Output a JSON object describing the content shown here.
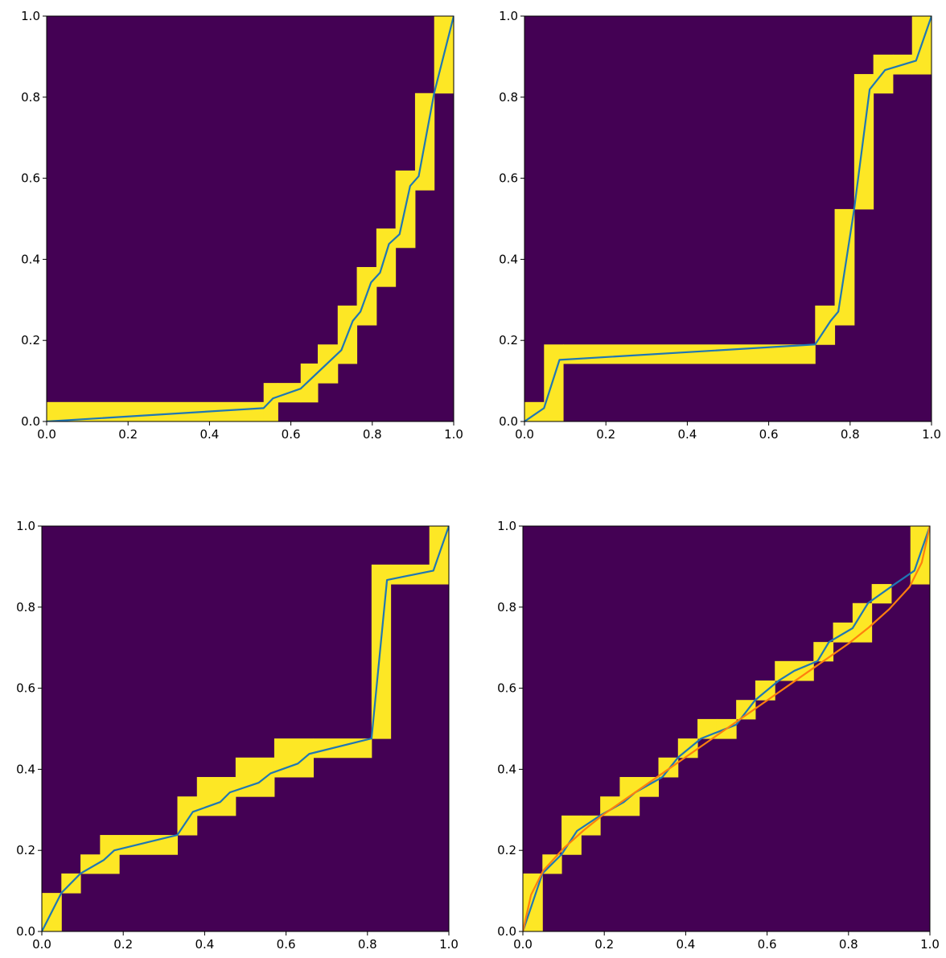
{
  "chart_data": [
    {
      "type": "line",
      "xlim": [
        0,
        1
      ],
      "ylim": [
        0,
        1
      ],
      "xticks": [
        "0.0",
        "0.2",
        "0.4",
        "0.6",
        "0.8",
        "1.0"
      ],
      "yticks": [
        "0.0",
        "0.2",
        "0.4",
        "0.6",
        "0.8",
        "1.0"
      ],
      "grid": false,
      "band_rects": [
        [
          0.0,
          0.0,
          0.533,
          0.048
        ],
        [
          0.0,
          0.0,
          0.568,
          0.0
        ],
        [
          0.533,
          0.0,
          0.568,
          0.095
        ],
        [
          0.568,
          0.048,
          0.624,
          0.095
        ],
        [
          0.624,
          0.048,
          0.666,
          0.143
        ],
        [
          0.666,
          0.095,
          0.715,
          0.19
        ],
        [
          0.715,
          0.143,
          0.762,
          0.286
        ],
        [
          0.762,
          0.238,
          0.81,
          0.381
        ],
        [
          0.81,
          0.333,
          0.857,
          0.476
        ],
        [
          0.857,
          0.429,
          0.905,
          0.619
        ],
        [
          0.905,
          0.571,
          0.952,
          0.81
        ],
        [
          0.952,
          0.81,
          1.0,
          1.0
        ]
      ],
      "series": [
        {
          "x": [
            0.0,
            0.533,
            0.556,
            0.624,
            0.724,
            0.752,
            0.771,
            0.797,
            0.819,
            0.841,
            0.867,
            0.893,
            0.914,
            0.952,
            1.0
          ],
          "y": [
            0.0,
            0.033,
            0.057,
            0.081,
            0.176,
            0.248,
            0.271,
            0.343,
            0.367,
            0.438,
            0.462,
            0.581,
            0.605,
            0.81,
            1.0
          ]
        }
      ]
    },
    {
      "type": "line",
      "xlim": [
        0,
        1
      ],
      "ylim": [
        0,
        1
      ],
      "xticks": [
        "0.0",
        "0.2",
        "0.4",
        "0.6",
        "0.8",
        "1.0"
      ],
      "yticks": [
        "0.0",
        "0.2",
        "0.4",
        "0.6",
        "0.8",
        "1.0"
      ],
      "grid": false,
      "band_rects": [
        [
          0.0,
          0.0,
          0.048,
          0.048
        ],
        [
          0.048,
          0.0,
          0.095,
          0.19
        ],
        [
          0.095,
          0.143,
          0.714,
          0.19
        ],
        [
          0.714,
          0.19,
          0.762,
          0.286
        ],
        [
          0.762,
          0.238,
          0.81,
          0.524
        ],
        [
          0.81,
          0.524,
          0.857,
          0.857
        ],
        [
          0.857,
          0.81,
          0.905,
          0.905
        ],
        [
          0.905,
          0.857,
          0.952,
          0.905
        ],
        [
          0.952,
          0.857,
          1.0,
          1.0
        ]
      ],
      "series": [
        {
          "x": [
            0.0,
            0.048,
            0.086,
            0.714,
            0.752,
            0.771,
            0.81,
            0.848,
            0.886,
            0.962,
            1.0
          ],
          "y": [
            0.0,
            0.033,
            0.152,
            0.19,
            0.248,
            0.271,
            0.524,
            0.819,
            0.867,
            0.89,
            1.0
          ]
        }
      ]
    },
    {
      "type": "line",
      "xlim": [
        0,
        1
      ],
      "ylim": [
        0,
        1
      ],
      "xticks": [
        "0.0",
        "0.2",
        "0.4",
        "0.6",
        "0.8",
        "1.0"
      ],
      "yticks": [
        "0.0",
        "0.2",
        "0.4",
        "0.6",
        "0.8",
        "1.0"
      ],
      "grid": false,
      "band_rects": [
        [
          0.0,
          0.0,
          0.048,
          0.095
        ],
        [
          0.048,
          0.095,
          0.095,
          0.143
        ],
        [
          0.095,
          0.143,
          0.143,
          0.19
        ],
        [
          0.143,
          0.143,
          0.19,
          0.238
        ],
        [
          0.19,
          0.19,
          0.333,
          0.238
        ],
        [
          0.333,
          0.238,
          0.381,
          0.333
        ],
        [
          0.381,
          0.286,
          0.476,
          0.381
        ],
        [
          0.476,
          0.333,
          0.571,
          0.429
        ],
        [
          0.571,
          0.381,
          0.667,
          0.476
        ],
        [
          0.667,
          0.429,
          0.81,
          0.476
        ],
        [
          0.81,
          0.476,
          0.857,
          0.905
        ],
        [
          0.857,
          0.857,
          0.952,
          0.905
        ],
        [
          0.952,
          0.857,
          1.0,
          1.0
        ]
      ],
      "series": [
        {
          "x": [
            0.0,
            0.048,
            0.095,
            0.152,
            0.178,
            0.333,
            0.371,
            0.438,
            0.462,
            0.533,
            0.562,
            0.629,
            0.657,
            0.81,
            0.848,
            0.962,
            1.0
          ],
          "y": [
            0.0,
            0.095,
            0.143,
            0.176,
            0.2,
            0.238,
            0.295,
            0.319,
            0.343,
            0.367,
            0.39,
            0.414,
            0.438,
            0.476,
            0.867,
            0.89,
            1.0
          ]
        }
      ]
    },
    {
      "type": "line",
      "xlim": [
        0,
        1
      ],
      "ylim": [
        0,
        1
      ],
      "xticks": [
        "0.0",
        "0.2",
        "0.4",
        "0.6",
        "0.8",
        "1.0"
      ],
      "yticks": [
        "0.0",
        "0.2",
        "0.4",
        "0.6",
        "0.8",
        "1.0"
      ],
      "grid": false,
      "band_rects": [
        [
          0.0,
          0.0,
          0.048,
          0.143
        ],
        [
          0.048,
          0.143,
          0.095,
          0.19
        ],
        [
          0.095,
          0.19,
          0.143,
          0.286
        ],
        [
          0.143,
          0.238,
          0.19,
          0.286
        ],
        [
          0.19,
          0.286,
          0.238,
          0.333
        ],
        [
          0.238,
          0.286,
          0.286,
          0.381
        ],
        [
          0.286,
          0.333,
          0.333,
          0.381
        ],
        [
          0.333,
          0.381,
          0.381,
          0.429
        ],
        [
          0.381,
          0.429,
          0.429,
          0.476
        ],
        [
          0.429,
          0.476,
          0.476,
          0.524
        ],
        [
          0.476,
          0.476,
          0.524,
          0.524
        ],
        [
          0.524,
          0.524,
          0.571,
          0.571
        ],
        [
          0.571,
          0.571,
          0.619,
          0.619
        ],
        [
          0.619,
          0.619,
          0.714,
          0.667
        ],
        [
          0.714,
          0.667,
          0.762,
          0.714
        ],
        [
          0.762,
          0.714,
          0.81,
          0.762
        ],
        [
          0.81,
          0.714,
          0.857,
          0.81
        ],
        [
          0.857,
          0.81,
          0.905,
          0.857
        ],
        [
          0.905,
          0.857,
          0.952,
          0.857
        ],
        [
          0.952,
          0.857,
          1.0,
          1.0
        ]
      ],
      "series": [
        {
          "x": [
            0.0,
            0.048,
            0.095,
            0.133,
            0.19,
            0.248,
            0.276,
            0.343,
            0.381,
            0.438,
            0.524,
            0.571,
            0.629,
            0.667,
            0.724,
            0.752,
            0.81,
            0.848,
            0.914,
            0.962,
            1.0
          ],
          "y": [
            0.0,
            0.143,
            0.19,
            0.248,
            0.286,
            0.319,
            0.343,
            0.381,
            0.429,
            0.476,
            0.51,
            0.571,
            0.619,
            0.643,
            0.667,
            0.714,
            0.748,
            0.81,
            0.857,
            0.89,
            1.0
          ]
        },
        {
          "x": [
            0.0,
            0.02,
            0.05,
            0.1,
            0.15,
            0.2,
            0.25,
            0.3,
            0.35,
            0.4,
            0.45,
            0.5,
            0.55,
            0.6,
            0.65,
            0.7,
            0.75,
            0.8,
            0.85,
            0.9,
            0.95,
            0.98,
            1.0
          ],
          "y": [
            0.0,
            0.09,
            0.15,
            0.205,
            0.25,
            0.29,
            0.325,
            0.36,
            0.395,
            0.43,
            0.465,
            0.5,
            0.535,
            0.57,
            0.605,
            0.64,
            0.675,
            0.71,
            0.75,
            0.795,
            0.85,
            0.91,
            1.0
          ]
        }
      ]
    }
  ],
  "colors": {
    "background": "#440154",
    "band": "#fde725",
    "series_primary": "#1f77b4",
    "series_secondary": "#ff7f0e",
    "axes": "#000000"
  }
}
